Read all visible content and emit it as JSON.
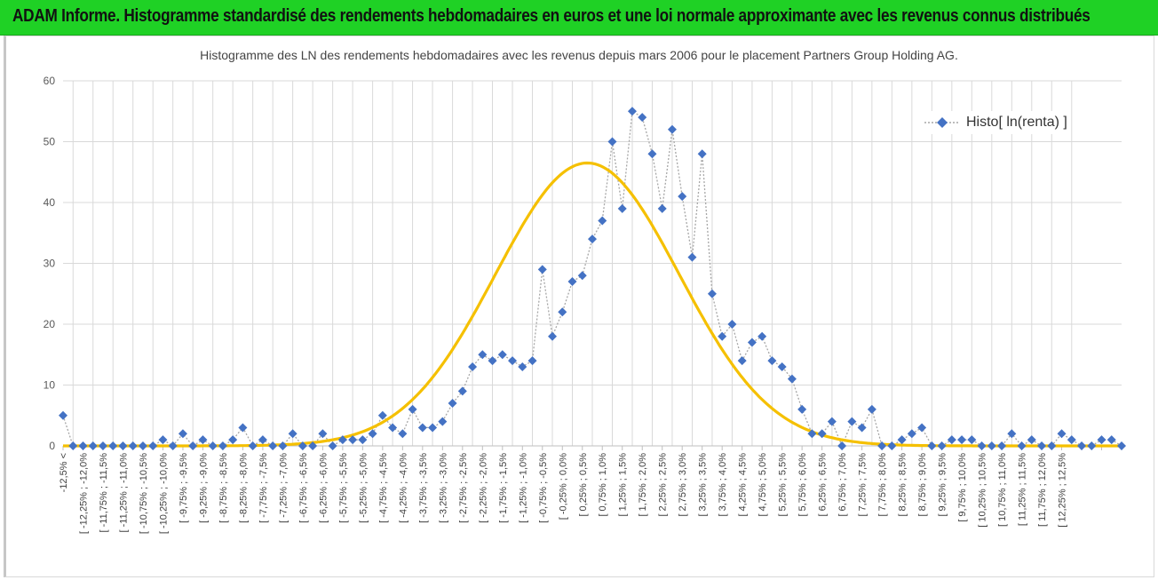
{
  "header": {
    "title": "ADAM Informe. Histogramme standardisé des rendements hebdomadaires en euros et une loi normale approximante avec les revenus connus distribués"
  },
  "colors": {
    "header_bg": "#1fd125",
    "series_marker": "#4472c4",
    "series_line": "#a6a6a6",
    "normal_curve": "#f5c000",
    "grid": "#d9d9d9"
  },
  "chart_data": {
    "type": "scatter",
    "title": "Histogramme des LN des rendements hebdomadaires avec les revenus depuis mars 2006 pour le placement Partners Group Holding AG.",
    "xlabel": "",
    "ylabel": "",
    "ylim": [
      0,
      60
    ],
    "yticks": [
      0,
      10,
      20,
      30,
      40,
      50,
      60
    ],
    "grid": true,
    "legend": "top-right",
    "categories": [
      "-12,5% <",
      "[ -12,25% ; -12,0%",
      "[ -11,75% ; -11,5%",
      "[ -11,25% ; -11,0%",
      "[ -10,75% ; -10,5%",
      "[ -10,25% ; -10,0%",
      "[ -9,75% ; -9,5%",
      "[ -9,25% ; -9,0%",
      "[ -8,75% ; -8,5%",
      "[ -8,25% ; -8,0%",
      "[ -7,75% ; -7,5%",
      "[ -7,25% ; -7,0%",
      "[ -6,75% ; -6,5%",
      "[ -6,25% ; -6,0%",
      "[ -5,75% ; -5,5%",
      "[ -5,25% ; -5,0%",
      "[ -4,75% ; -4,5%",
      "[ -4,25% ; -4,0%",
      "[ -3,75% ; -3,5%",
      "[ -3,25% ; -3,0%",
      "[ -2,75% ; -2,5%",
      "[ -2,25% ; -2,0%",
      "[ -1,75% ; -1,5%",
      "[ -1,25% ; -1,0%",
      "[ -0,75% ; -0,5%",
      "[ -0,25% ; 0,0%",
      "[ 0,25% ; 0,5%",
      "[ 0,75% ; 1,0%",
      "[ 1,25% ; 1,5%",
      "[ 1,75% ; 2,0%",
      "[ 2,25% ; 2,5%",
      "[ 2,75% ; 3,0%",
      "[ 3,25% ; 3,5%",
      "[ 3,75% ; 4,0%",
      "[ 4,25% ; 4,5%",
      "[ 4,75% ; 5,0%",
      "[ 5,25% ; 5,5%",
      "[ 5,75% ; 6,0%",
      "[ 6,25% ; 6,5%",
      "[ 6,75% ; 7,0%",
      "[ 7,25% ; 7,5%",
      "[ 7,75% ; 8,0%",
      "[ 8,25% ; 8,5%",
      "[ 8,75% ; 9,0%",
      "[ 9,25% ; 9,5%",
      "[ 9,75% ; 10,0%",
      "[ 10,25% ; 10,5%",
      "[ 10,75% ; 11,0%",
      "[ 11,25% ; 11,5%",
      "[ 11,75% ; 12,0%",
      "[ 12,25% ; 12,5%"
    ],
    "series": [
      {
        "name": "Histo[ ln(renta) ]",
        "kind": "scatter-dotted",
        "values": [
          5,
          0,
          0,
          0,
          0,
          0,
          0,
          0,
          0,
          0,
          1,
          0,
          2,
          0,
          1,
          0,
          0,
          1,
          3,
          0,
          1,
          0,
          0,
          2,
          0,
          0,
          2,
          0,
          1,
          1,
          1,
          2,
          5,
          3,
          2,
          6,
          3,
          3,
          4,
          7,
          9,
          13,
          15,
          14,
          15,
          14,
          13,
          14,
          29,
          18,
          22,
          27,
          28,
          34,
          37,
          50,
          39,
          55,
          54,
          48,
          39,
          52,
          41,
          31,
          48,
          25,
          18,
          20,
          14,
          17,
          18,
          14,
          13,
          11,
          6,
          2,
          2,
          4,
          0,
          4,
          3,
          6,
          0,
          0,
          1,
          2,
          3,
          0,
          0,
          1,
          1,
          1,
          0,
          0,
          0,
          2,
          0,
          1,
          0,
          0,
          2,
          1,
          0,
          0,
          1,
          1,
          0
        ]
      },
      {
        "name": "",
        "kind": "normal-curve",
        "mean_index": 52.5,
        "sd_index": 9.2,
        "peak": 46.5
      }
    ]
  }
}
